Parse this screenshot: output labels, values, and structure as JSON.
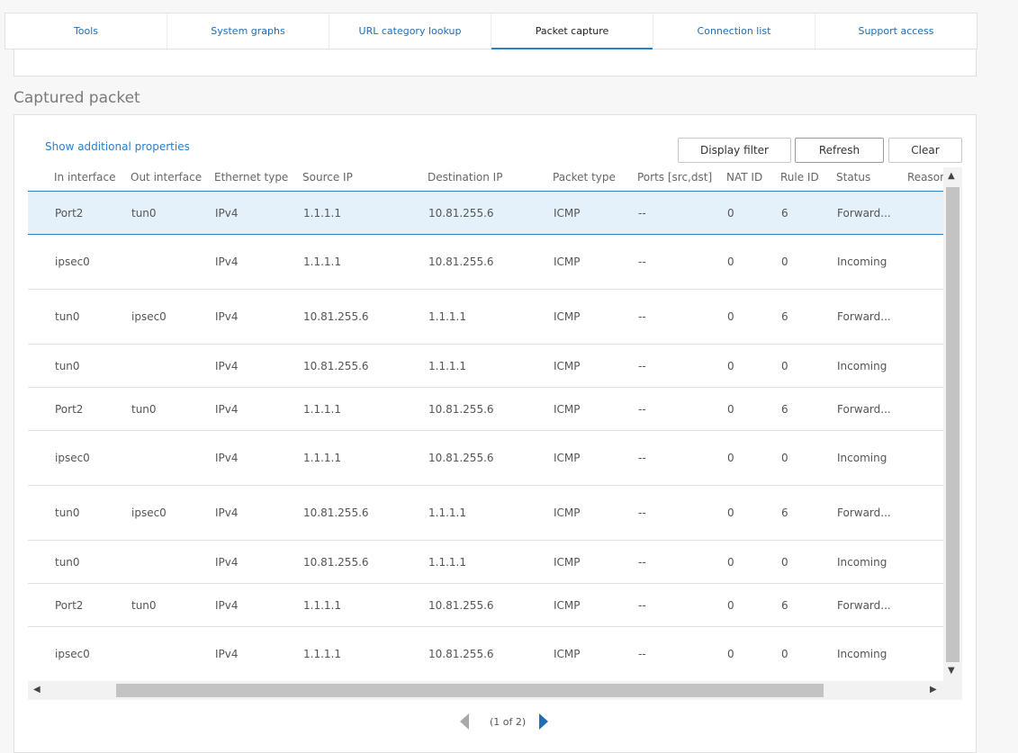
{
  "tabs": [
    {
      "label": "Tools",
      "active": false
    },
    {
      "label": "System graphs",
      "active": false
    },
    {
      "label": "URL category lookup",
      "active": false
    },
    {
      "label": "Packet capture",
      "active": true
    },
    {
      "label": "Connection list",
      "active": false
    },
    {
      "label": "Support access",
      "active": false
    }
  ],
  "section": {
    "title": "Captured packet"
  },
  "toolbar": {
    "show_props_label": "Show additional properties",
    "display_filter_label": "Display filter",
    "refresh_label": "Refresh",
    "clear_label": "Clear"
  },
  "table": {
    "columns": [
      "In interface",
      "Out interface",
      "Ethernet type",
      "Source IP",
      "Destination IP",
      "Packet type",
      "Ports [src,dst]",
      "NAT ID",
      "Rule ID",
      "Status",
      "Reason"
    ],
    "rows": [
      [
        "Port2",
        "tun0",
        "IPv4",
        "1.1.1.1",
        "10.81.255.6",
        "ICMP",
        "--",
        "0",
        "6",
        "Forward...",
        ""
      ],
      [
        "ipsec0",
        "",
        "IPv4",
        "1.1.1.1",
        "10.81.255.6",
        "ICMP",
        "--",
        "0",
        "0",
        "Incoming",
        ""
      ],
      [
        "tun0",
        "ipsec0",
        "IPv4",
        "10.81.255.6",
        "1.1.1.1",
        "ICMP",
        "--",
        "0",
        "6",
        "Forward...",
        ""
      ],
      [
        "tun0",
        "",
        "IPv4",
        "10.81.255.6",
        "1.1.1.1",
        "ICMP",
        "--",
        "0",
        "0",
        "Incoming",
        ""
      ],
      [
        "Port2",
        "tun0",
        "IPv4",
        "1.1.1.1",
        "10.81.255.6",
        "ICMP",
        "--",
        "0",
        "6",
        "Forward...",
        ""
      ],
      [
        "ipsec0",
        "",
        "IPv4",
        "1.1.1.1",
        "10.81.255.6",
        "ICMP",
        "--",
        "0",
        "0",
        "Incoming",
        ""
      ],
      [
        "tun0",
        "ipsec0",
        "IPv4",
        "10.81.255.6",
        "1.1.1.1",
        "ICMP",
        "--",
        "0",
        "6",
        "Forward...",
        ""
      ],
      [
        "tun0",
        "",
        "IPv4",
        "10.81.255.6",
        "1.1.1.1",
        "ICMP",
        "--",
        "0",
        "0",
        "Incoming",
        ""
      ],
      [
        "Port2",
        "tun0",
        "IPv4",
        "1.1.1.1",
        "10.81.255.6",
        "ICMP",
        "--",
        "0",
        "6",
        "Forward...",
        ""
      ],
      [
        "ipsec0",
        "",
        "IPv4",
        "1.1.1.1",
        "10.81.255.6",
        "ICMP",
        "--",
        "0",
        "0",
        "Incoming",
        ""
      ]
    ],
    "selected_row": 0
  },
  "pagination": {
    "text": "(1 of 2)"
  },
  "colors": {
    "accent": "#2a7fc9",
    "link": "#1f6db5",
    "selected_row": "#e5f1fa"
  }
}
